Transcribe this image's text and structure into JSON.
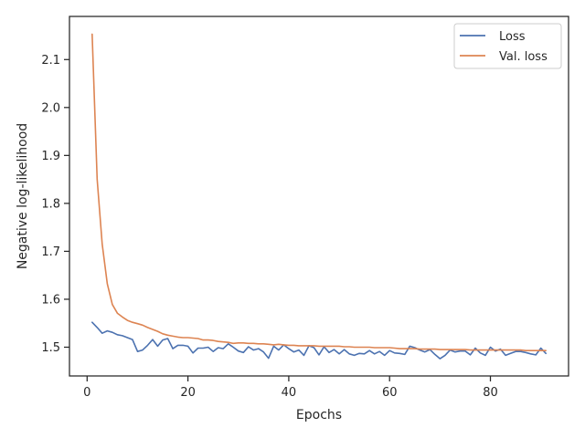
{
  "chart_data": {
    "type": "line",
    "title": "",
    "xlabel": "Epochs",
    "ylabel": "Negative log-likelihood",
    "xlim": [
      -3.5,
      95.5
    ],
    "ylim": [
      1.44,
      2.19
    ],
    "xticks": [
      0,
      20,
      40,
      60,
      80
    ],
    "yticks": [
      1.5,
      1.6,
      1.7,
      1.8,
      1.9,
      2.0,
      2.1
    ],
    "ytick_labels": [
      "1.5",
      "1.6",
      "1.7",
      "1.8",
      "1.9",
      "2.0",
      "2.1"
    ],
    "grid": false,
    "legend_position": "top-right",
    "x": [
      1,
      2,
      3,
      4,
      5,
      6,
      7,
      8,
      9,
      10,
      11,
      12,
      13,
      14,
      15,
      16,
      17,
      18,
      19,
      20,
      21,
      22,
      23,
      24,
      25,
      26,
      27,
      28,
      29,
      30,
      31,
      32,
      33,
      34,
      35,
      36,
      37,
      38,
      39,
      40,
      41,
      42,
      43,
      44,
      45,
      46,
      47,
      48,
      49,
      50,
      51,
      52,
      53,
      54,
      55,
      56,
      57,
      58,
      59,
      60,
      61,
      62,
      63,
      64,
      65,
      66,
      67,
      68,
      69,
      70,
      71,
      72,
      73,
      74,
      75,
      76,
      77,
      78,
      79,
      80,
      81,
      82,
      83,
      84,
      85,
      86,
      87,
      88,
      89,
      90,
      91
    ],
    "series": [
      {
        "name": "Loss",
        "color": "#4c72b0",
        "values": [
          1.552,
          1.541,
          1.529,
          1.534,
          1.531,
          1.526,
          1.524,
          1.52,
          1.516,
          1.491,
          1.494,
          1.504,
          1.516,
          1.502,
          1.515,
          1.518,
          1.497,
          1.504,
          1.504,
          1.502,
          1.488,
          1.498,
          1.498,
          1.5,
          1.491,
          1.499,
          1.497,
          1.507,
          1.5,
          1.492,
          1.489,
          1.501,
          1.494,
          1.497,
          1.49,
          1.477,
          1.502,
          1.494,
          1.505,
          1.497,
          1.49,
          1.494,
          1.483,
          1.503,
          1.499,
          1.484,
          1.501,
          1.489,
          1.495,
          1.486,
          1.495,
          1.486,
          1.483,
          1.487,
          1.486,
          1.493,
          1.486,
          1.491,
          1.483,
          1.493,
          1.488,
          1.487,
          1.485,
          1.502,
          1.499,
          1.494,
          1.49,
          1.495,
          1.485,
          1.476,
          1.483,
          1.494,
          1.49,
          1.492,
          1.492,
          1.484,
          1.498,
          1.488,
          1.483,
          1.5,
          1.492,
          1.496,
          1.483,
          1.487,
          1.491,
          1.491,
          1.489,
          1.486,
          1.484,
          1.498,
          1.487
        ]
      },
      {
        "name": "Val. loss",
        "color": "#dd8452",
        "values": [
          2.153,
          1.85,
          1.715,
          1.632,
          1.589,
          1.571,
          1.563,
          1.556,
          1.552,
          1.549,
          1.546,
          1.541,
          1.537,
          1.533,
          1.528,
          1.525,
          1.523,
          1.521,
          1.52,
          1.52,
          1.519,
          1.518,
          1.515,
          1.515,
          1.514,
          1.512,
          1.511,
          1.51,
          1.508,
          1.509,
          1.509,
          1.508,
          1.508,
          1.507,
          1.507,
          1.506,
          1.505,
          1.506,
          1.505,
          1.504,
          1.504,
          1.503,
          1.503,
          1.503,
          1.503,
          1.502,
          1.502,
          1.502,
          1.502,
          1.502,
          1.501,
          1.501,
          1.5,
          1.5,
          1.5,
          1.5,
          1.499,
          1.499,
          1.499,
          1.499,
          1.498,
          1.497,
          1.497,
          1.497,
          1.497,
          1.496,
          1.496,
          1.496,
          1.496,
          1.495,
          1.495,
          1.495,
          1.495,
          1.495,
          1.495,
          1.494,
          1.494,
          1.494,
          1.494,
          1.494,
          1.494,
          1.494,
          1.494,
          1.494,
          1.494,
          1.494,
          1.493,
          1.493,
          1.493,
          1.493,
          1.493
        ]
      }
    ]
  }
}
